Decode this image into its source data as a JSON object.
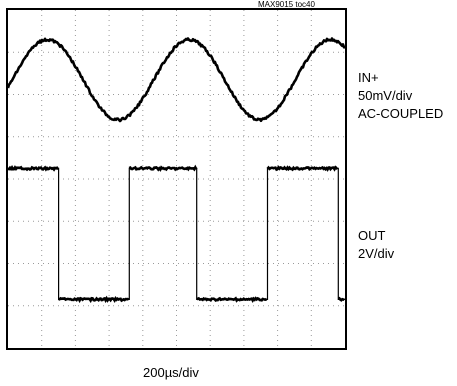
{
  "chart_data": {
    "type": "line",
    "note": "MAX9015 toc40",
    "x_scale": "200µs/div",
    "x_divisions": 10,
    "y_divisions": 8,
    "grid": true,
    "series": [
      {
        "name": "IN+",
        "scale": "50mV/div",
        "coupling": "AC-COUPLED",
        "waveform": "sine",
        "period_divisions": 4.2,
        "amplitude_divisions": 0.95,
        "center_division_from_top": 1.65,
        "x_divisions": [
          0,
          0.5,
          1,
          1.5,
          2,
          2.5,
          3,
          3.5,
          4,
          4.5,
          5,
          5.5,
          6,
          6.5,
          7,
          7.5,
          8,
          8.5,
          9,
          9.5,
          10
        ],
        "y_divisions_from_top": [
          0.85,
          0.97,
          1.39,
          1.94,
          2.41,
          2.6,
          2.4,
          1.93,
          1.35,
          0.91,
          0.72,
          0.88,
          1.32,
          1.87,
          2.38,
          2.59,
          2.43,
          2.02,
          1.46,
          0.97,
          0.73
        ]
      },
      {
        "name": "OUT",
        "scale": "2V/div",
        "waveform": "square",
        "high_division_from_top": 3.75,
        "low_division_from_top": 6.85,
        "x_divisions": [
          0,
          1.5,
          1.5,
          3.6,
          3.6,
          5.6,
          5.6,
          7.7,
          7.7,
          9.8,
          9.8,
          10
        ],
        "y_divisions_from_top": [
          3.75,
          3.75,
          6.85,
          6.85,
          3.75,
          3.75,
          6.85,
          6.85,
          3.75,
          3.75,
          6.85,
          6.85
        ]
      }
    ]
  },
  "labels": {
    "top_note": "MAX9015 toc40",
    "in_name": "IN+",
    "in_scale": "50mV/div",
    "in_coupling": "AC-COUPLED",
    "out_name": "OUT",
    "out_scale": "2V/div",
    "time_scale": "200µs/div"
  }
}
